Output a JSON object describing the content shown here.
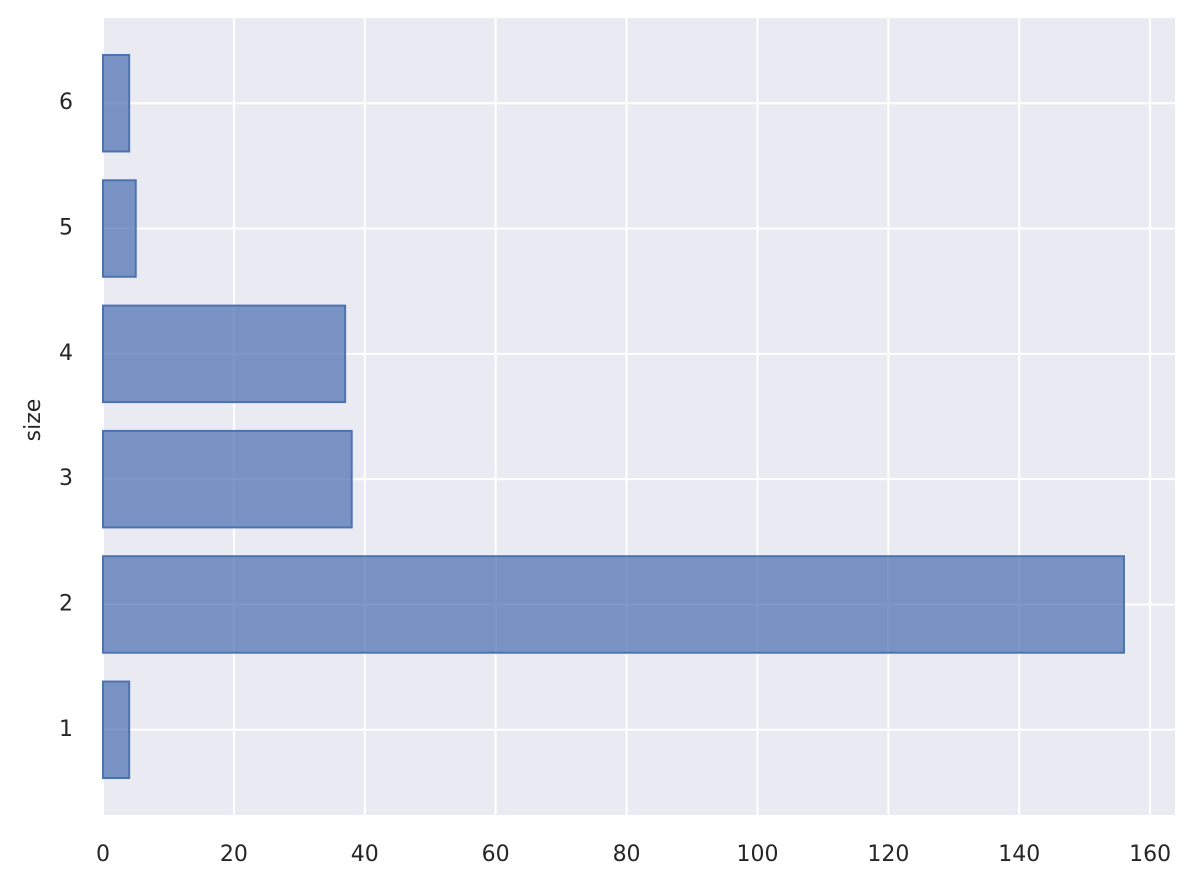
{
  "chart_data": {
    "type": "bar",
    "orientation": "horizontal",
    "y_label": "size",
    "categories": [
      "1",
      "2",
      "3",
      "4",
      "5",
      "6"
    ],
    "values": [
      4,
      156,
      38,
      37,
      5,
      4
    ],
    "color": "#4c72b0",
    "xlim": [
      0,
      163.8
    ],
    "xticks": [
      0,
      20,
      40,
      60,
      80,
      100,
      120,
      140,
      160
    ],
    "grid": true
  }
}
